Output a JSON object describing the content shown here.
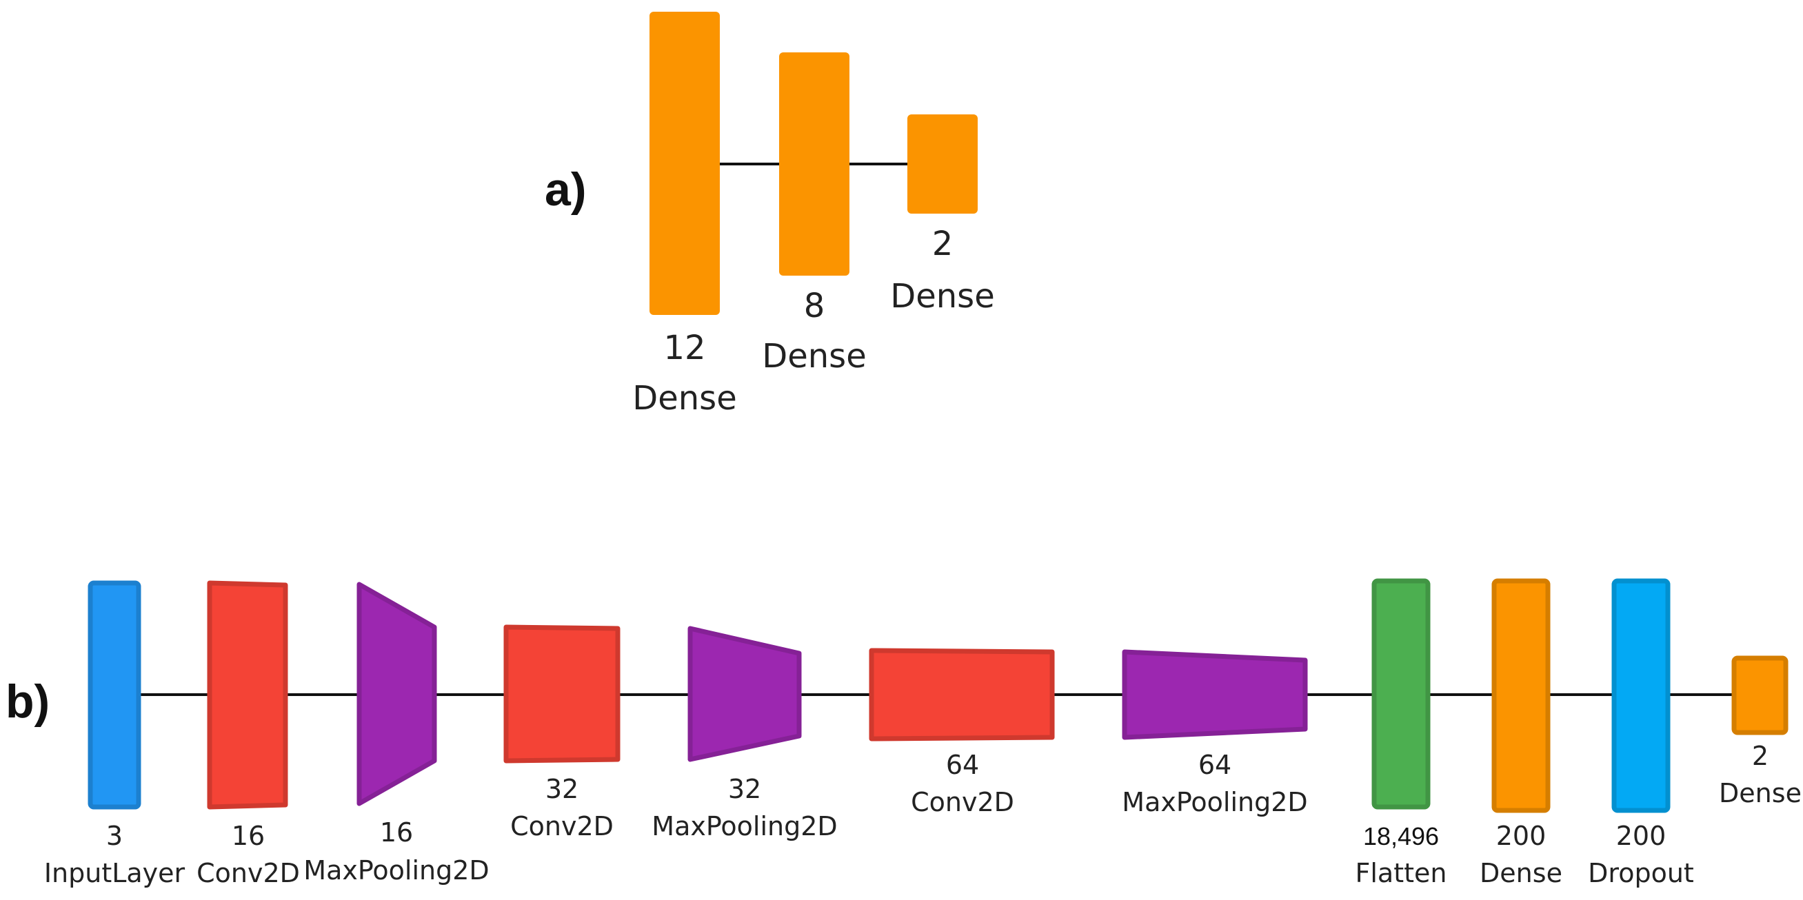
{
  "panels": {
    "a": {
      "label": "a)",
      "layers": [
        {
          "units": "12",
          "type": "Dense",
          "color": "#FB9400"
        },
        {
          "units": "8",
          "type": "Dense",
          "color": "#FB9400"
        },
        {
          "units": "2",
          "type": "Dense",
          "color": "#FB9400"
        }
      ]
    },
    "b": {
      "label": "b)",
      "layers": [
        {
          "units": "3",
          "type": "InputLayer",
          "color": "#2196F3"
        },
        {
          "units": "16",
          "type": "Conv2D",
          "color": "#F44336"
        },
        {
          "units": "16",
          "type": "MaxPooling2D",
          "color": "#9C27B0"
        },
        {
          "units": "32",
          "type": "Conv2D",
          "color": "#F44336"
        },
        {
          "units": "32",
          "type": "MaxPooling2D",
          "color": "#9C27B0"
        },
        {
          "units": "64",
          "type": "Conv2D",
          "color": "#F44336"
        },
        {
          "units": "64",
          "type": "MaxPooling2D",
          "color": "#9C27B0"
        },
        {
          "units": "18,496",
          "type": "Flatten",
          "color": "#4CAF50"
        },
        {
          "units": "200",
          "type": "Dense",
          "color": "#FB9400"
        },
        {
          "units": "200",
          "type": "Dropout",
          "color": "#03A9F4"
        },
        {
          "units": "2",
          "type": "Dense",
          "color": "#FB9400"
        }
      ]
    }
  }
}
